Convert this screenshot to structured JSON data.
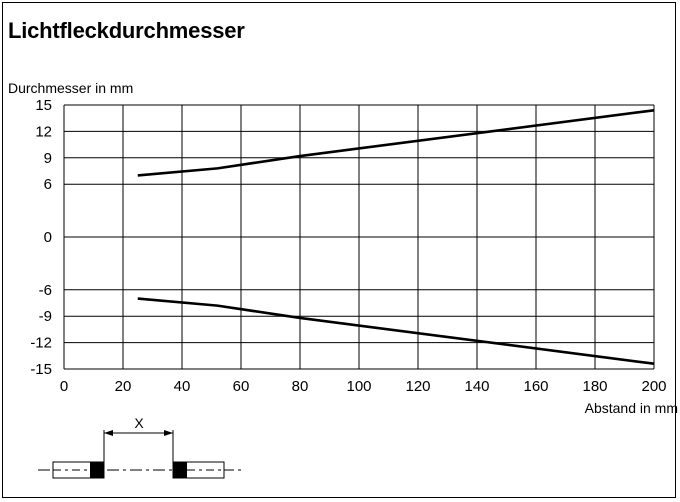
{
  "title": "Lichtfleckdurchmesser",
  "chart_data": {
    "type": "line",
    "ylabel": "Durchmesser in mm",
    "xlabel": "Abstand in mm",
    "xlim": [
      0,
      200
    ],
    "ylim": [
      -15,
      15
    ],
    "x_ticks": [
      0,
      20,
      40,
      60,
      80,
      100,
      120,
      140,
      160,
      180,
      200
    ],
    "y_ticks": [
      15,
      12,
      9,
      6,
      0,
      -6,
      -9,
      -12,
      -15
    ],
    "grid": true,
    "series": [
      {
        "x": [
          25,
          52,
          80,
          200
        ],
        "values": [
          7.0,
          7.8,
          9.2,
          14.4
        ]
      },
      {
        "x": [
          25,
          52,
          80,
          200
        ],
        "values": [
          -7.0,
          -7.8,
          -9.2,
          -14.4
        ]
      }
    ]
  },
  "diagram": {
    "distance_label": "X"
  }
}
